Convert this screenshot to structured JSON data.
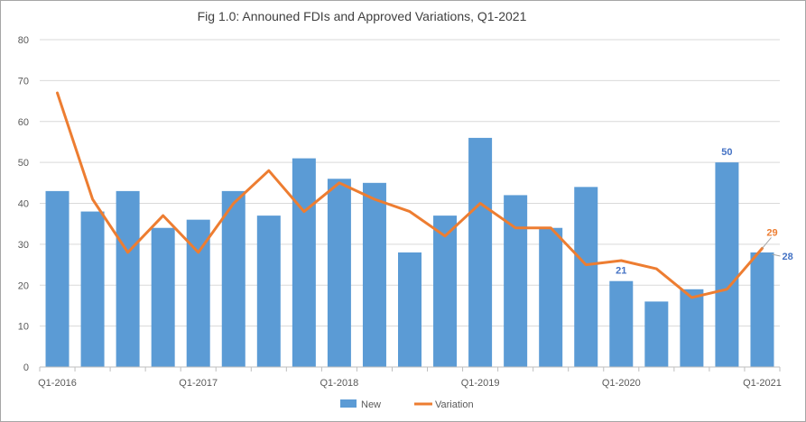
{
  "chart_data": {
    "type": "bar",
    "title": "Fig 1.0: Announed FDIs and Approved Variations, Q1-2021",
    "xlabel": "",
    "ylabel": "",
    "ylim": [
      0,
      80
    ],
    "yticks": [
      0,
      10,
      20,
      30,
      40,
      50,
      60,
      70,
      80
    ],
    "grid": true,
    "legend_position": "bottom",
    "categories": [
      "Q1-2016",
      "Q2-2016",
      "Q3-2016",
      "Q4-2016",
      "Q1-2017",
      "Q2-2017",
      "Q3-2017",
      "Q4-2017",
      "Q1-2018",
      "Q2-2018",
      "Q3-2018",
      "Q4-2018",
      "Q1-2019",
      "Q2-2019",
      "Q3-2019",
      "Q4-2019",
      "Q1-2020",
      "Q2-2020",
      "Q3-2020",
      "Q4-2020",
      "Q1-2021"
    ],
    "xtick_labels": [
      "Q1-2016",
      "",
      "",
      "",
      "Q1-2017",
      "",
      "",
      "",
      "Q1-2018",
      "",
      "",
      "",
      "Q1-2019",
      "",
      "",
      "",
      "Q1-2020",
      "",
      "",
      "",
      "Q1-2021"
    ],
    "series": [
      {
        "name": "New",
        "type": "bar",
        "color": "#5b9bd5",
        "values": [
          43,
          38,
          43,
          34,
          36,
          43,
          37,
          51,
          46,
          45,
          28,
          37,
          56,
          42,
          34,
          44,
          21,
          16,
          19,
          50,
          28
        ],
        "data_labels": [
          {
            "index": 16,
            "text": "21"
          },
          {
            "index": 19,
            "text": "50"
          },
          {
            "index": 20,
            "text": "28"
          }
        ],
        "label_color": "#4472c4"
      },
      {
        "name": "Variation",
        "type": "line",
        "color": "#ed7d31",
        "values": [
          67,
          41,
          28,
          37,
          28,
          40,
          48,
          38,
          45,
          41,
          38,
          32,
          40,
          34,
          34,
          25,
          26,
          24,
          17,
          19,
          29
        ],
        "data_labels": [
          {
            "index": 20,
            "text": "29"
          }
        ],
        "label_color": "#ed7d31"
      }
    ]
  }
}
